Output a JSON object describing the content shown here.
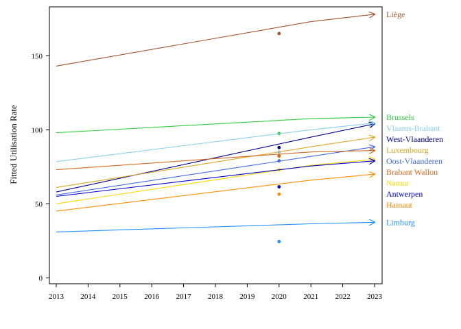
{
  "chart_data": {
    "type": "line",
    "title": "",
    "xlabel": "",
    "ylabel": "Fitted Utilisation Rate",
    "xlim": [
      2013,
      2023
    ],
    "ylim": [
      -4,
      183
    ],
    "x_ticks": [
      2013,
      2014,
      2015,
      2016,
      2017,
      2018,
      2019,
      2020,
      2021,
      2022,
      2023
    ],
    "y_ticks": [
      0,
      50,
      100,
      150
    ],
    "grid": false,
    "legend": "labels at line ends (right)",
    "series": [
      {
        "name": "Liège",
        "color": "#a0522d",
        "x": [
          2013,
          2021,
          2023
        ],
        "y": [
          143,
          173,
          178
        ],
        "observed_2020": 165
      },
      {
        "name": "Brussels",
        "color": "#2ecc40",
        "x": [
          2013,
          2021,
          2023
        ],
        "y": [
          98,
          107.5,
          108.5
        ],
        "observed_2020": 97.5
      },
      {
        "name": "West-Vlaanderen",
        "color": "#00008b",
        "x": [
          2013,
          2021,
          2023
        ],
        "y": [
          58,
          95,
          104
        ],
        "observed_2020": 88
      },
      {
        "name": "Vlaams-Brabant",
        "color": "#87ceeb",
        "x": [
          2013,
          2021,
          2023
        ],
        "y": [
          78.5,
          100,
          104.5
        ],
        "observed_2020": 85
      },
      {
        "name": "Luxembourg",
        "color": "#daa520",
        "x": [
          2013,
          2021,
          2023
        ],
        "y": [
          61,
          88.5,
          95
        ],
        "observed_2020": 82
      },
      {
        "name": "Oost-Vlaanderen",
        "color": "#4169e1",
        "x": [
          2013,
          2021,
          2023
        ],
        "y": [
          56,
          82,
          88.5
        ],
        "observed_2020": 79
      },
      {
        "name": "Brabant Wallon",
        "color": "#d2691e",
        "x": [
          2013,
          2021,
          2023
        ],
        "y": [
          73,
          85,
          86
        ],
        "observed_2020": 82.5
      },
      {
        "name": "Namur",
        "color": "#ffd700",
        "x": [
          2013,
          2021,
          2023
        ],
        "y": [
          50,
          76,
          80
        ],
        "observed_2020": 73
      },
      {
        "name": "Antwerpen",
        "color": "#0000cd",
        "x": [
          2013,
          2021,
          2023
        ],
        "y": [
          55,
          75.5,
          79
        ],
        "observed_2020": 61.5
      },
      {
        "name": "Hainaut",
        "color": "#ff8c00",
        "x": [
          2013,
          2021,
          2023
        ],
        "y": [
          45,
          66,
          70
        ],
        "observed_2020": 56.5
      },
      {
        "name": "Limburg",
        "color": "#1e90ff",
        "x": [
          2013,
          2021,
          2023
        ],
        "y": [
          31,
          36.5,
          37.5
        ],
        "observed_2020": 24.5
      }
    ]
  }
}
